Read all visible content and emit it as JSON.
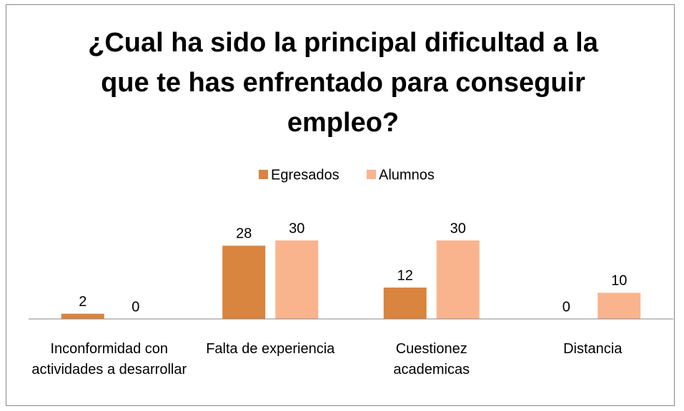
{
  "chart_data": {
    "type": "bar",
    "title": "¿Cual ha sido la principal dificultad a la que te has enfrentado para conseguir empleo?",
    "categories": [
      "Inconformidad con actividades a desarrollar",
      "Falta de experiencia",
      "Cuestionez academicas",
      "Distancia"
    ],
    "series": [
      {
        "name": "Egresados",
        "color": "#d9843f",
        "values": [
          2,
          28,
          12,
          0
        ]
      },
      {
        "name": "Alumnos",
        "color": "#f9b48e",
        "values": [
          0,
          30,
          30,
          10
        ]
      }
    ],
    "legend": "top"
  }
}
